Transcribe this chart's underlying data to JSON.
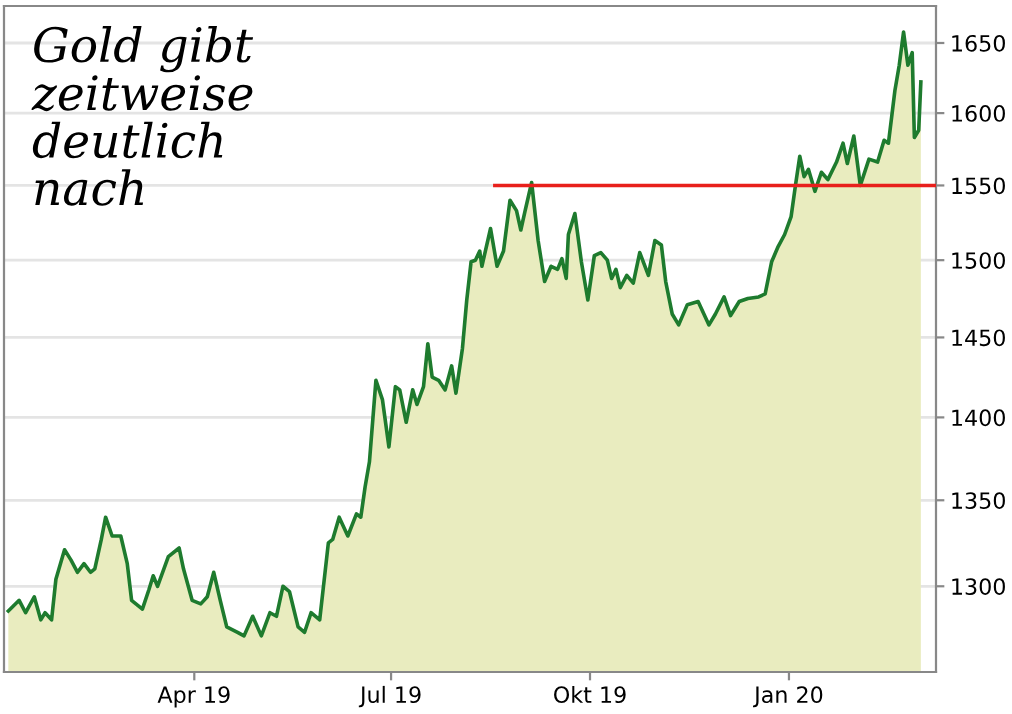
{
  "chart_data": {
    "type": "area",
    "title": "Gold gibt\nzeitweise\ndeutlich\nnach",
    "log": "y",
    "grid": "y",
    "ylim": [
      1252,
      1677
    ],
    "yticks": [
      1300,
      1350,
      1400,
      1450,
      1500,
      1550,
      1600,
      1650
    ],
    "xlim": [
      "2019-01-03",
      "2020-03-09"
    ],
    "xticks": [
      {
        "value": "2019-04-01",
        "label": "Apr 19"
      },
      {
        "value": "2019-07-01",
        "label": "Jul 19"
      },
      {
        "value": "2019-10-01",
        "label": "Okt 19"
      },
      {
        "value": "2020-01-01",
        "label": "Jan 20"
      }
    ],
    "series": [
      {
        "color": "#1e7b2e",
        "x": [
          "2019-01-05",
          "2019-01-10",
          "2019-01-13",
          "2019-01-17",
          "2019-01-20",
          "2019-01-22",
          "2019-01-25",
          "2019-01-27",
          "2019-01-31",
          "2019-02-03",
          "2019-02-06",
          "2019-02-09",
          "2019-02-12",
          "2019-02-14",
          "2019-02-17",
          "2019-02-19",
          "2019-02-22",
          "2019-02-26",
          "2019-03-01",
          "2019-03-03",
          "2019-03-08",
          "2019-03-11",
          "2019-03-13",
          "2019-03-15",
          "2019-03-20",
          "2019-03-25",
          "2019-03-27",
          "2019-03-31",
          "2019-04-04",
          "2019-04-07",
          "2019-04-10",
          "2019-04-13",
          "2019-04-16",
          "2019-04-21",
          "2019-04-24",
          "2019-04-28",
          "2019-05-02",
          "2019-05-06",
          "2019-05-09",
          "2019-05-12",
          "2019-05-15",
          "2019-05-19",
          "2019-05-22",
          "2019-05-25",
          "2019-05-29",
          "2019-06-02",
          "2019-06-04",
          "2019-06-07",
          "2019-06-11",
          "2019-06-15",
          "2019-06-17",
          "2019-06-19",
          "2019-06-21",
          "2019-06-24",
          "2019-06-27",
          "2019-06-30",
          "2019-07-03",
          "2019-07-05",
          "2019-07-08",
          "2019-07-11",
          "2019-07-13",
          "2019-07-16",
          "2019-07-18",
          "2019-07-20",
          "2019-07-23",
          "2019-07-26",
          "2019-07-29",
          "2019-07-31",
          "2019-08-03",
          "2019-08-05",
          "2019-08-07",
          "2019-08-09",
          "2019-08-11",
          "2019-08-12",
          "2019-08-16",
          "2019-08-19",
          "2019-08-22",
          "2019-08-25",
          "2019-08-28",
          "2019-08-30",
          "2019-09-01",
          "2019-09-04",
          "2019-09-07",
          "2019-09-10",
          "2019-09-13",
          "2019-09-16",
          "2019-09-18",
          "2019-09-20",
          "2019-09-21",
          "2019-09-24",
          "2019-09-27",
          "2019-09-30",
          "2019-10-03",
          "2019-10-06",
          "2019-10-09",
          "2019-10-11",
          "2019-10-13",
          "2019-10-15",
          "2019-10-18",
          "2019-10-21",
          "2019-10-24",
          "2019-10-28",
          "2019-10-31",
          "2019-11-03",
          "2019-11-05",
          "2019-11-08",
          "2019-11-11",
          "2019-11-15",
          "2019-11-20",
          "2019-11-25",
          "2019-11-28",
          "2019-12-02",
          "2019-12-05",
          "2019-12-09",
          "2019-12-13",
          "2019-12-18",
          "2019-12-21",
          "2019-12-24",
          "2019-12-27",
          "2019-12-30",
          "2020-01-02",
          "2020-01-04",
          "2020-01-06",
          "2020-01-08",
          "2020-01-10",
          "2020-01-13",
          "2020-01-16",
          "2020-01-19",
          "2020-01-23",
          "2020-01-26",
          "2020-01-28",
          "2020-01-31",
          "2020-02-03",
          "2020-02-07",
          "2020-02-11",
          "2020-02-14",
          "2020-02-16",
          "2020-02-19",
          "2020-02-21",
          "2020-02-23",
          "2020-02-25",
          "2020-02-27",
          "2020-02-28",
          "2020-03-01",
          "2020-03-02"
        ],
        "values": [
          1286,
          1292,
          1285,
          1294,
          1281,
          1285,
          1281,
          1304,
          1321,
          1315,
          1308,
          1313,
          1308,
          1310,
          1327,
          1340,
          1329,
          1329,
          1313,
          1292,
          1287,
          1298,
          1306,
          1300,
          1317,
          1322,
          1310,
          1292,
          1290,
          1294,
          1308,
          1292,
          1277,
          1274,
          1272,
          1283,
          1272,
          1285,
          1283,
          1300,
          1297,
          1277,
          1274,
          1285,
          1281,
          1325,
          1327,
          1340,
          1329,
          1342,
          1340,
          1358,
          1373,
          1423,
          1411,
          1382,
          1419,
          1417,
          1397,
          1417,
          1408,
          1419,
          1446,
          1425,
          1423,
          1417,
          1432,
          1415,
          1443,
          1474,
          1499,
          1500,
          1506,
          1496,
          1521,
          1496,
          1506,
          1540,
          1533,
          1520,
          1533,
          1552,
          1513,
          1486,
          1496,
          1494,
          1501,
          1488,
          1517,
          1531,
          1499,
          1474,
          1503,
          1505,
          1500,
          1488,
          1494,
          1482,
          1490,
          1485,
          1505,
          1490,
          1513,
          1510,
          1486,
          1465,
          1458,
          1471,
          1473,
          1458,
          1465,
          1476,
          1464,
          1473,
          1475,
          1476,
          1478,
          1499,
          1509,
          1517,
          1529,
          1550,
          1570,
          1556,
          1561,
          1546,
          1559,
          1554,
          1566,
          1579,
          1565,
          1584,
          1550,
          1568,
          1566,
          1581,
          1579,
          1616,
          1634,
          1658,
          1634,
          1643,
          1583,
          1588,
          1622
        ]
      },
      {
        "type": "line",
        "color": "#e8201c",
        "x": [
          "2019-08-18",
          "2020-03-09"
        ],
        "values": [
          1550,
          1550
        ]
      }
    ]
  }
}
